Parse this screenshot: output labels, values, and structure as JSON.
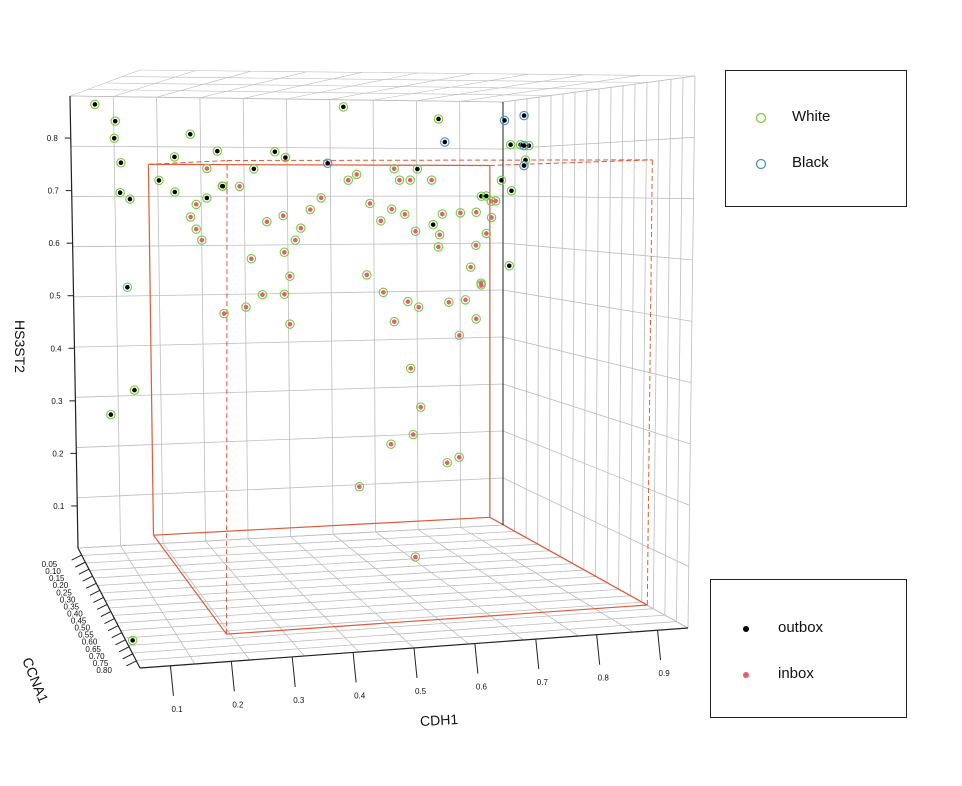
{
  "chart_data": {
    "type": "scatter",
    "title": "",
    "xlabel": "CDH1",
    "ylabel": "HS3ST2",
    "zlabel": "CCNA1",
    "x_ticks": [
      "0.1",
      "0.2",
      "0.3",
      "0.4",
      "0.5",
      "0.6",
      "0.7",
      "0.8",
      "0.9"
    ],
    "y_ticks": [
      "0.1",
      "0.2",
      "0.3",
      "0.4",
      "0.5",
      "0.6",
      "0.7",
      "0.8"
    ],
    "z_ticks": [
      "0.05",
      "0.10",
      "0.15",
      "0.20",
      "0.25",
      "0.30",
      "0.35",
      "0.40",
      "0.45",
      "0.50",
      "0.55",
      "0.60",
      "0.65",
      "0.70",
      "0.75",
      "0.80"
    ],
    "xlim": [
      0.05,
      0.95
    ],
    "ylim": [
      0.02,
      0.88
    ],
    "zlim": [
      0.0,
      0.85
    ],
    "grid": true,
    "box": {
      "x": [
        0.2,
        0.9
      ],
      "y": [
        0.05,
        0.75
      ],
      "z": [
        0.05,
        0.8
      ],
      "color": "#e05a3a"
    },
    "legends": [
      {
        "position": "top-right",
        "entries": [
          {
            "label": "White",
            "marker": "open-circle",
            "color": "#7ac943"
          },
          {
            "label": "Black",
            "marker": "open-circle",
            "color": "#4a90d9"
          }
        ]
      },
      {
        "position": "bottom-right",
        "entries": [
          {
            "label": "outbox",
            "marker": "filled-dot",
            "color": "#000000"
          },
          {
            "label": "inbox",
            "marker": "filled-dot",
            "color": "#e06070"
          }
        ]
      }
    ],
    "series": [
      {
        "name": "outbox",
        "color": "#000000",
        "points": [
          {
            "x": 0.05,
            "y": 0.85,
            "z": 0.3,
            "group": "White"
          },
          {
            "x": 0.08,
            "y": 0.82,
            "z": 0.35,
            "group": "White"
          },
          {
            "x": 0.07,
            "y": 0.79,
            "z": 0.4,
            "group": "White"
          },
          {
            "x": 0.09,
            "y": 0.75,
            "z": 0.35,
            "group": "White"
          },
          {
            "x": 0.08,
            "y": 0.7,
            "z": 0.4,
            "group": "White"
          },
          {
            "x": 0.09,
            "y": 0.69,
            "z": 0.45,
            "group": "White"
          },
          {
            "x": 0.1,
            "y": 0.54,
            "z": 0.35,
            "group": "White"
          },
          {
            "x": 0.12,
            "y": 0.36,
            "z": 0.3,
            "group": "White"
          },
          {
            "x": 0.02,
            "y": 0.37,
            "z": 0.7,
            "group": "White"
          },
          {
            "x": 0.05,
            "y": 0.04,
            "z": 0.75,
            "group": "White"
          },
          {
            "x": 0.17,
            "y": 0.72,
            "z": 0.3,
            "group": "White"
          },
          {
            "x": 0.19,
            "y": 0.76,
            "z": 0.35,
            "group": "White"
          },
          {
            "x": 0.2,
            "y": 0.7,
            "z": 0.3,
            "group": "White"
          },
          {
            "x": 0.23,
            "y": 0.8,
            "z": 0.3,
            "group": "White"
          },
          {
            "x": 0.25,
            "y": 0.69,
            "z": 0.35,
            "group": "White"
          },
          {
            "x": 0.27,
            "y": 0.77,
            "z": 0.35,
            "group": "White"
          },
          {
            "x": 0.28,
            "y": 0.71,
            "z": 0.35,
            "group": "White"
          },
          {
            "x": 0.29,
            "y": 0.71,
            "z": 0.3,
            "group": "White"
          },
          {
            "x": 0.35,
            "y": 0.74,
            "z": 0.3,
            "group": "White"
          },
          {
            "x": 0.39,
            "y": 0.77,
            "z": 0.3,
            "group": "White"
          },
          {
            "x": 0.41,
            "y": 0.76,
            "z": 0.3,
            "group": "White"
          },
          {
            "x": 0.52,
            "y": 0.85,
            "z": 0.3,
            "group": "White"
          },
          {
            "x": 0.7,
            "y": 0.83,
            "z": 0.3,
            "group": "White"
          },
          {
            "x": 0.66,
            "y": 0.74,
            "z": 0.3,
            "group": "White"
          },
          {
            "x": 0.69,
            "y": 0.64,
            "z": 0.3,
            "group": "White"
          },
          {
            "x": 0.82,
            "y": 0.69,
            "z": 0.2,
            "group": "White"
          },
          {
            "x": 0.88,
            "y": 0.72,
            "z": 0.15,
            "group": "White"
          },
          {
            "x": 0.9,
            "y": 0.7,
            "z": 0.15,
            "group": "White"
          },
          {
            "x": 0.94,
            "y": 0.79,
            "z": 0.1,
            "group": "White"
          },
          {
            "x": 0.92,
            "y": 0.79,
            "z": 0.1,
            "group": "White"
          },
          {
            "x": 0.95,
            "y": 0.76,
            "z": 0.1,
            "group": "White"
          },
          {
            "x": 0.98,
            "y": 0.79,
            "z": 0.05,
            "group": "White"
          },
          {
            "x": 0.94,
            "y": 0.55,
            "z": 0.05,
            "group": "White"
          },
          {
            "x": 0.85,
            "y": 0.69,
            "z": 0.15,
            "group": "White"
          },
          {
            "x": 0.49,
            "y": 0.75,
            "z": 0.3,
            "group": "Black"
          },
          {
            "x": 0.73,
            "y": 0.79,
            "z": 0.25,
            "group": "Black"
          },
          {
            "x": 0.93,
            "y": 0.84,
            "z": 0.05,
            "group": "Black"
          },
          {
            "x": 0.97,
            "y": 0.85,
            "z": 0.05,
            "group": "Black"
          },
          {
            "x": 0.97,
            "y": 0.79,
            "z": 0.05,
            "group": "Black"
          },
          {
            "x": 0.97,
            "y": 0.75,
            "z": 0.05,
            "group": "Black"
          }
        ]
      },
      {
        "name": "inbox",
        "color": "#e06070",
        "points": [
          {
            "x": 0.24,
            "y": 0.74,
            "z": 0.4
          },
          {
            "x": 0.22,
            "y": 0.68,
            "z": 0.4
          },
          {
            "x": 0.23,
            "y": 0.62,
            "z": 0.4
          },
          {
            "x": 0.2,
            "y": 0.66,
            "z": 0.45
          },
          {
            "x": 0.21,
            "y": 0.64,
            "z": 0.45
          },
          {
            "x": 0.3,
            "y": 0.71,
            "z": 0.4
          },
          {
            "x": 0.35,
            "y": 0.65,
            "z": 0.4
          },
          {
            "x": 0.38,
            "y": 0.66,
            "z": 0.4
          },
          {
            "x": 0.4,
            "y": 0.64,
            "z": 0.45
          },
          {
            "x": 0.39,
            "y": 0.62,
            "z": 0.45
          },
          {
            "x": 0.37,
            "y": 0.6,
            "z": 0.45
          },
          {
            "x": 0.38,
            "y": 0.56,
            "z": 0.45
          },
          {
            "x": 0.37,
            "y": 0.53,
            "z": 0.45
          },
          {
            "x": 0.31,
            "y": 0.59,
            "z": 0.45
          },
          {
            "x": 0.33,
            "y": 0.53,
            "z": 0.45
          },
          {
            "x": 0.3,
            "y": 0.51,
            "z": 0.45
          },
          {
            "x": 0.38,
            "y": 0.48,
            "z": 0.45
          },
          {
            "x": 0.26,
            "y": 0.5,
            "z": 0.45
          },
          {
            "x": 0.43,
            "y": 0.67,
            "z": 0.4
          },
          {
            "x": 0.45,
            "y": 0.69,
            "z": 0.4
          },
          {
            "x": 0.5,
            "y": 0.72,
            "z": 0.4
          },
          {
            "x": 0.53,
            "y": 0.73,
            "z": 0.35
          },
          {
            "x": 0.54,
            "y": 0.68,
            "z": 0.4
          },
          {
            "x": 0.56,
            "y": 0.65,
            "z": 0.4
          },
          {
            "x": 0.58,
            "y": 0.67,
            "z": 0.4
          },
          {
            "x": 0.6,
            "y": 0.74,
            "z": 0.35
          },
          {
            "x": 0.61,
            "y": 0.72,
            "z": 0.35
          },
          {
            "x": 0.63,
            "y": 0.72,
            "z": 0.35
          },
          {
            "x": 0.62,
            "y": 0.66,
            "z": 0.35
          },
          {
            "x": 0.64,
            "y": 0.63,
            "z": 0.35
          },
          {
            "x": 0.67,
            "y": 0.72,
            "z": 0.35
          },
          {
            "x": 0.69,
            "y": 0.66,
            "z": 0.35
          },
          {
            "x": 0.52,
            "y": 0.56,
            "z": 0.45
          },
          {
            "x": 0.55,
            "y": 0.53,
            "z": 0.45
          },
          {
            "x": 0.57,
            "y": 0.48,
            "z": 0.45
          },
          {
            "x": 0.61,
            "y": 0.51,
            "z": 0.4
          },
          {
            "x": 0.63,
            "y": 0.5,
            "z": 0.4
          },
          {
            "x": 0.6,
            "y": 0.4,
            "z": 0.45
          },
          {
            "x": 0.62,
            "y": 0.28,
            "z": 0.4
          },
          {
            "x": 0.65,
            "y": 0.32,
            "z": 0.35
          },
          {
            "x": 0.55,
            "y": 0.28,
            "z": 0.5
          },
          {
            "x": 0.48,
            "y": 0.22,
            "z": 0.55
          },
          {
            "x": 0.58,
            "y": 0.1,
            "z": 0.55
          },
          {
            "x": 0.7,
            "y": 0.6,
            "z": 0.3
          },
          {
            "x": 0.72,
            "y": 0.5,
            "z": 0.3
          },
          {
            "x": 0.72,
            "y": 0.62,
            "z": 0.25
          },
          {
            "x": 0.74,
            "y": 0.44,
            "z": 0.3
          },
          {
            "x": 0.76,
            "y": 0.66,
            "z": 0.25
          },
          {
            "x": 0.77,
            "y": 0.5,
            "z": 0.25
          },
          {
            "x": 0.78,
            "y": 0.56,
            "z": 0.25
          },
          {
            "x": 0.79,
            "y": 0.6,
            "z": 0.25
          },
          {
            "x": 0.8,
            "y": 0.53,
            "z": 0.25
          },
          {
            "x": 0.81,
            "y": 0.46,
            "z": 0.2
          },
          {
            "x": 0.81,
            "y": 0.66,
            "z": 0.2
          },
          {
            "x": 0.83,
            "y": 0.62,
            "z": 0.2
          },
          {
            "x": 0.84,
            "y": 0.52,
            "z": 0.15
          },
          {
            "x": 0.84,
            "y": 0.65,
            "z": 0.2
          },
          {
            "x": 0.86,
            "y": 0.68,
            "z": 0.15
          },
          {
            "x": 0.89,
            "y": 0.68,
            "z": 0.1
          },
          {
            "x": 0.74,
            "y": 0.22,
            "z": 0.3
          },
          {
            "x": 0.7,
            "y": 0.22,
            "z": 0.35
          }
        ]
      }
    ]
  },
  "legend_top": {
    "items": [
      {
        "label": "White",
        "color": "#7ac943"
      },
      {
        "label": "Black",
        "color": "#4a90d9"
      }
    ]
  },
  "legend_bottom": {
    "items": [
      {
        "label": "outbox",
        "color": "#000000"
      },
      {
        "label": "inbox",
        "color": "#e06070"
      }
    ]
  }
}
